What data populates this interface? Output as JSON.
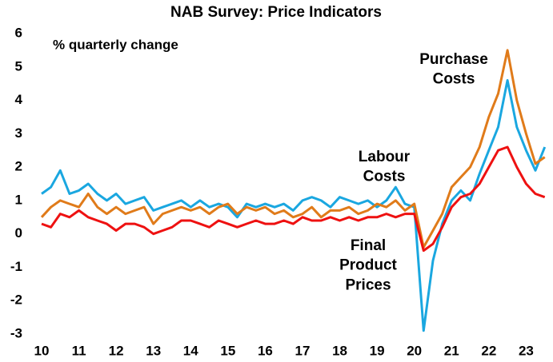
{
  "chart_data": {
    "type": "line",
    "title": "NAB Survey: Price Indicators",
    "y_label": "% quarterly change",
    "x": [
      10.0,
      10.25,
      10.5,
      10.75,
      11.0,
      11.25,
      11.5,
      11.75,
      12.0,
      12.25,
      12.5,
      12.75,
      13.0,
      13.25,
      13.5,
      13.75,
      14.0,
      14.25,
      14.5,
      14.75,
      15.0,
      15.25,
      15.5,
      15.75,
      16.0,
      16.25,
      16.5,
      16.75,
      17.0,
      17.25,
      17.5,
      17.75,
      18.0,
      18.25,
      18.5,
      18.75,
      19.0,
      19.25,
      19.5,
      19.75,
      20.0,
      20.25,
      20.5,
      20.75,
      21.0,
      21.25,
      21.5,
      21.75,
      22.0,
      22.25,
      22.5,
      22.75,
      23.0,
      23.25,
      23.5
    ],
    "series": [
      {
        "name": "Labour Costs",
        "color": "#1aa7e0",
        "values": [
          1.2,
          1.4,
          1.9,
          1.2,
          1.3,
          1.5,
          1.2,
          1.0,
          1.2,
          0.9,
          1.0,
          1.1,
          0.7,
          0.8,
          0.9,
          1.0,
          0.8,
          1.0,
          0.8,
          0.9,
          0.8,
          0.5,
          0.9,
          0.8,
          0.9,
          0.8,
          0.9,
          0.7,
          1.0,
          1.1,
          1.0,
          0.8,
          1.1,
          1.0,
          0.9,
          1.0,
          0.8,
          1.0,
          1.4,
          0.9,
          0.8,
          -2.9,
          -0.8,
          0.3,
          1.0,
          1.3,
          1.0,
          1.8,
          2.5,
          3.2,
          4.6,
          3.2,
          2.5,
          1.9,
          2.6
        ]
      },
      {
        "name": "Purchase Costs",
        "color": "#e07b1a",
        "values": [
          0.5,
          0.8,
          1.0,
          0.9,
          0.8,
          1.2,
          0.8,
          0.6,
          0.8,
          0.6,
          0.7,
          0.8,
          0.3,
          0.6,
          0.7,
          0.8,
          0.7,
          0.8,
          0.6,
          0.8,
          0.9,
          0.6,
          0.8,
          0.7,
          0.8,
          0.6,
          0.7,
          0.5,
          0.6,
          0.8,
          0.5,
          0.7,
          0.7,
          0.8,
          0.6,
          0.7,
          0.9,
          0.8,
          1.0,
          0.7,
          0.9,
          -0.4,
          0.1,
          0.6,
          1.4,
          1.7,
          2.0,
          2.6,
          3.5,
          4.2,
          5.5,
          4.0,
          3.0,
          2.1,
          2.3
        ]
      },
      {
        "name": "Final Product Prices",
        "color": "#ee1111",
        "values": [
          0.3,
          0.2,
          0.6,
          0.5,
          0.7,
          0.5,
          0.4,
          0.3,
          0.1,
          0.3,
          0.3,
          0.2,
          0.0,
          0.1,
          0.2,
          0.4,
          0.4,
          0.3,
          0.2,
          0.4,
          0.3,
          0.2,
          0.3,
          0.4,
          0.3,
          0.3,
          0.4,
          0.3,
          0.5,
          0.4,
          0.4,
          0.5,
          0.4,
          0.5,
          0.4,
          0.5,
          0.5,
          0.6,
          0.5,
          0.6,
          0.6,
          -0.5,
          -0.3,
          0.2,
          0.8,
          1.1,
          1.2,
          1.5,
          2.0,
          2.5,
          2.6,
          2.0,
          1.5,
          1.2,
          1.1
        ]
      }
    ],
    "xlim": [
      9.85,
      23.7
    ],
    "xticks": [
      10,
      11,
      12,
      13,
      14,
      15,
      16,
      17,
      18,
      19,
      20,
      21,
      22,
      23
    ],
    "ylim": [
      -3,
      6
    ],
    "yticks": [
      -3,
      -2,
      -1,
      0,
      1,
      2,
      3,
      4,
      5,
      6
    ]
  }
}
